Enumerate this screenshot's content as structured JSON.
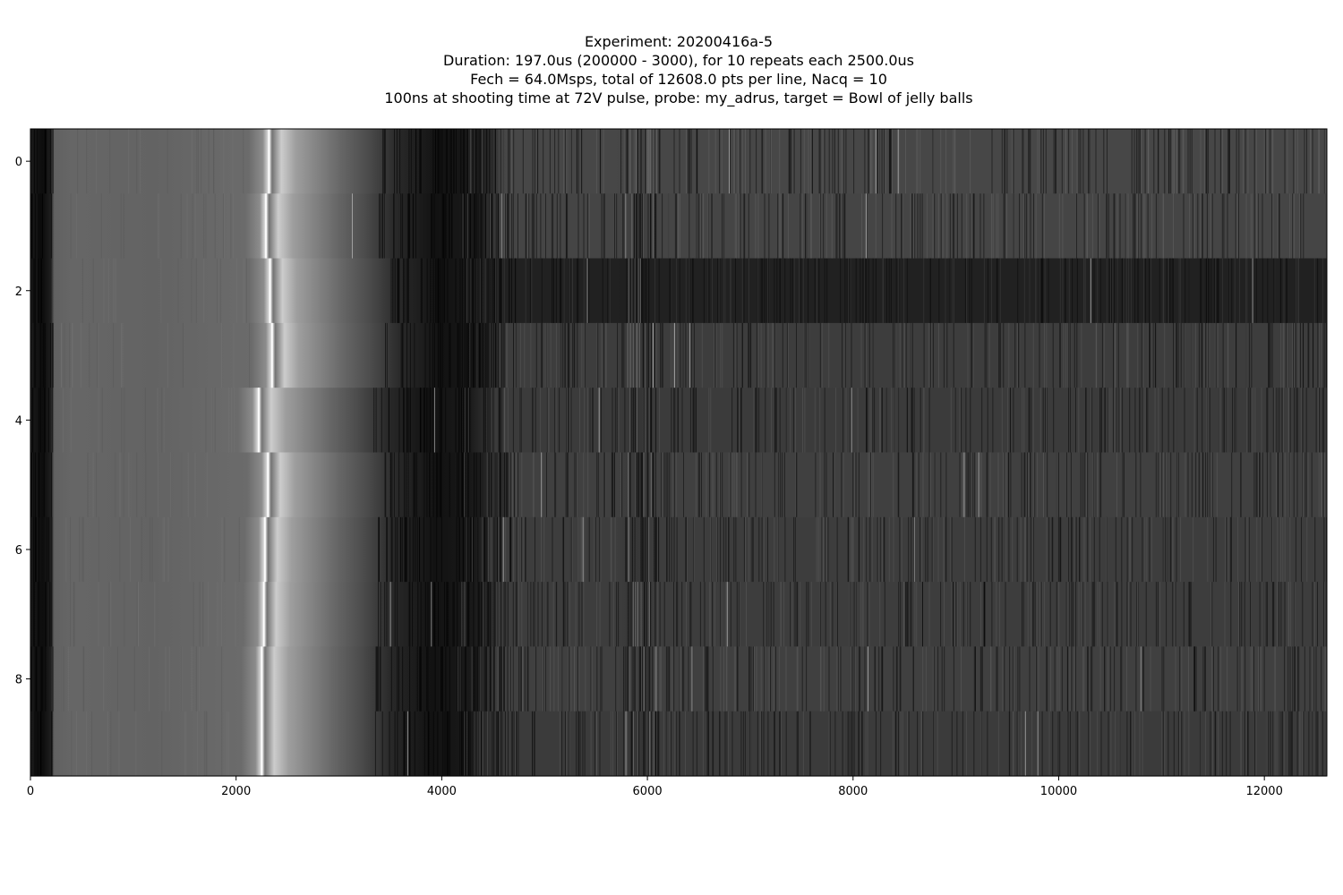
{
  "chart_data": {
    "type": "heatmap",
    "colormap": "gray",
    "title_lines": [
      "Experiment: 20200416a-5",
      "Duration: 197.0us (200000 - 3000), for 10 repeats each 2500.0us",
      "Fech = 64.0Msps, total of 12608.0 pts per line, Nacq = 10",
      "100ns at shooting time at 72V pulse, probe: my_adrus, target = Bowl of jelly balls"
    ],
    "xlabel": "",
    "ylabel": "",
    "xlim": [
      0,
      12608
    ],
    "ylim": [
      9.5,
      -0.5
    ],
    "rows": 10,
    "x_ticks": [
      0,
      2000,
      4000,
      6000,
      8000,
      10000,
      12000
    ],
    "y_ticks": [
      0,
      2,
      4,
      6,
      8
    ],
    "rows_data": [
      {
        "row": 0,
        "echo_x": 2320,
        "brightness": 0.28
      },
      {
        "row": 1,
        "echo_x": 2290,
        "brightness": 0.27
      },
      {
        "row": 2,
        "echo_x": 2330,
        "brightness": 0.13
      },
      {
        "row": 3,
        "echo_x": 2350,
        "brightness": 0.24
      },
      {
        "row": 4,
        "echo_x": 2220,
        "brightness": 0.23
      },
      {
        "row": 5,
        "echo_x": 2310,
        "brightness": 0.25
      },
      {
        "row": 6,
        "echo_x": 2280,
        "brightness": 0.24
      },
      {
        "row": 7,
        "echo_x": 2270,
        "brightness": 0.24
      },
      {
        "row": 8,
        "echo_x": 2250,
        "brightness": 0.25
      },
      {
        "row": 9,
        "echo_x": 2250,
        "brightness": 0.23
      }
    ],
    "grid": false
  }
}
